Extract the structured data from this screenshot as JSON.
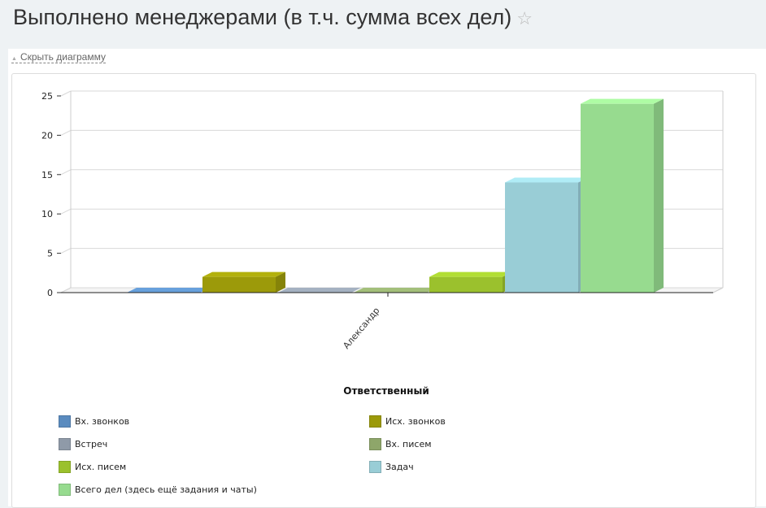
{
  "header": {
    "title": "Выполнено менеджерами (в т.ч. сумма всех дел)",
    "star_icon": "star-icon"
  },
  "toggle": {
    "label": "Скрыть диаграмму"
  },
  "chart_data": {
    "type": "bar",
    "style": "3d-column",
    "categories": [
      "Александр"
    ],
    "xlabel": "Ответственный",
    "ylabel": "",
    "ylim": [
      0,
      25
    ],
    "yticks": [
      0,
      5,
      10,
      15,
      20,
      25
    ],
    "grid": true,
    "legend_position": "bottom",
    "series": [
      {
        "name": "Вх. звонков",
        "values": [
          0
        ],
        "color": "#5a8bbf"
      },
      {
        "name": "Исх. звонков",
        "values": [
          2
        ],
        "color": "#9c9a0a"
      },
      {
        "name": "Встреч",
        "values": [
          0
        ],
        "color": "#8f9aa8"
      },
      {
        "name": "Вх. писем",
        "values": [
          0
        ],
        "color": "#8ea66a"
      },
      {
        "name": "Исх. писем",
        "values": [
          2
        ],
        "color": "#9bc12d"
      },
      {
        "name": "Задач",
        "values": [
          14
        ],
        "color": "#99cdd6"
      },
      {
        "name": "Всего дел (здесь ещё задания и чаты)",
        "values": [
          24
        ],
        "color": "#97db8f"
      }
    ]
  }
}
